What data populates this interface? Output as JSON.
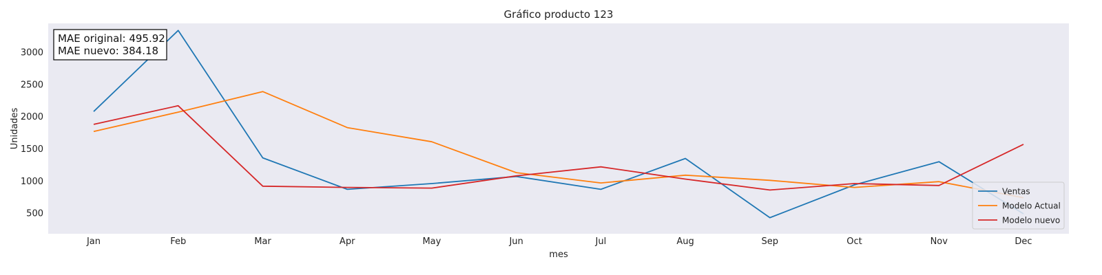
{
  "chart_data": {
    "type": "line",
    "title": "Gráfico producto 123",
    "xlabel": "mes",
    "ylabel": "Unidades",
    "categories": [
      "Jan",
      "Feb",
      "Mar",
      "Apr",
      "May",
      "Jun",
      "Jul",
      "Aug",
      "Sep",
      "Oct",
      "Nov",
      "Dec"
    ],
    "yticks": [
      500,
      1000,
      1500,
      2000,
      2500,
      3000
    ],
    "ylim": [
      180,
      3450
    ],
    "grid": false,
    "legend_position": "bottom-right",
    "series": [
      {
        "name": "Ventas",
        "color": "#1f77b4",
        "values": [
          2080,
          3340,
          1360,
          870,
          960,
          1070,
          870,
          1350,
          430,
          940,
          1300,
          490
        ]
      },
      {
        "name": "Modelo Actual",
        "color": "#ff7f0e",
        "values": [
          1770,
          2070,
          2390,
          1830,
          1610,
          1130,
          970,
          1090,
          1010,
          900,
          990,
          740
        ]
      },
      {
        "name": "Modelo nuevo",
        "color": "#d62728",
        "values": [
          1880,
          2170,
          920,
          900,
          890,
          1080,
          1220,
          1030,
          860,
          960,
          930,
          1570
        ]
      }
    ],
    "annotations": [
      "MAE original: 495.92",
      "MAE nuevo: 384.18"
    ],
    "plot_background": "#eaeaf2"
  }
}
